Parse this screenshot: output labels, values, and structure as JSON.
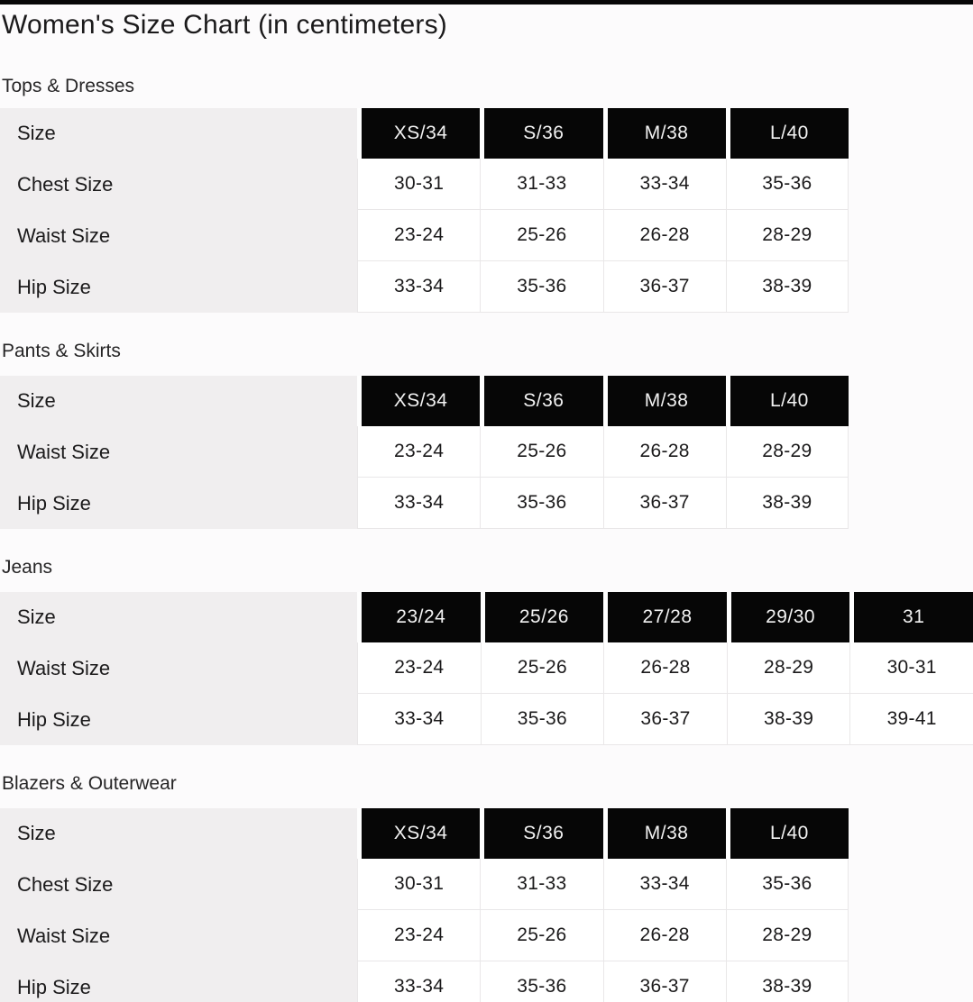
{
  "page": {
    "title": "Women's Size Chart (in centimeters)"
  },
  "colors": {
    "top_bar": "#070707",
    "header_cell_bg": "#060606",
    "header_cell_text": "#f2f2f2",
    "label_column_bg": "#f0eeef",
    "body_text": "#1b1a1b",
    "grid_line": "#e9e7e8",
    "page_background": "#fcfbfc"
  },
  "sections": [
    {
      "title": "Tops & Dresses",
      "size_row_label": "Size",
      "columns": [
        "XS/34",
        "S/36",
        "M/38",
        "L/40"
      ],
      "rows": [
        {
          "label": "Chest Size",
          "values": [
            "30-31",
            "31-33",
            "33-34",
            "35-36"
          ]
        },
        {
          "label": "Waist Size",
          "values": [
            "23-24",
            "25-26",
            "26-28",
            "28-29"
          ]
        },
        {
          "label": "Hip Size",
          "values": [
            "33-34",
            "35-36",
            "36-37",
            "38-39"
          ]
        }
      ]
    },
    {
      "title": "Pants & Skirts",
      "size_row_label": "Size",
      "columns": [
        "XS/34",
        "S/36",
        "M/38",
        "L/40"
      ],
      "rows": [
        {
          "label": "Waist Size",
          "values": [
            "23-24",
            "25-26",
            "26-28",
            "28-29"
          ]
        },
        {
          "label": "Hip Size",
          "values": [
            "33-34",
            "35-36",
            "36-37",
            "38-39"
          ]
        }
      ]
    },
    {
      "title": "Jeans",
      "size_row_label": "Size",
      "columns": [
        "23/24",
        "25/26",
        "27/28",
        "29/30",
        "31"
      ],
      "rows": [
        {
          "label": "Waist Size",
          "values": [
            "23-24",
            "25-26",
            "26-28",
            "28-29",
            "30-31"
          ]
        },
        {
          "label": "Hip Size",
          "values": [
            "33-34",
            "35-36",
            "36-37",
            "38-39",
            "39-41"
          ]
        }
      ]
    },
    {
      "title": "Blazers & Outerwear",
      "size_row_label": "Size",
      "columns": [
        "XS/34",
        "S/36",
        "M/38",
        "L/40"
      ],
      "rows": [
        {
          "label": "Chest Size",
          "values": [
            "30-31",
            "31-33",
            "33-34",
            "35-36"
          ]
        },
        {
          "label": "Waist Size",
          "values": [
            "23-24",
            "25-26",
            "26-28",
            "28-29"
          ]
        },
        {
          "label": "Hip Size",
          "values": [
            "33-34",
            "35-36",
            "36-37",
            "38-39"
          ]
        }
      ]
    }
  ]
}
